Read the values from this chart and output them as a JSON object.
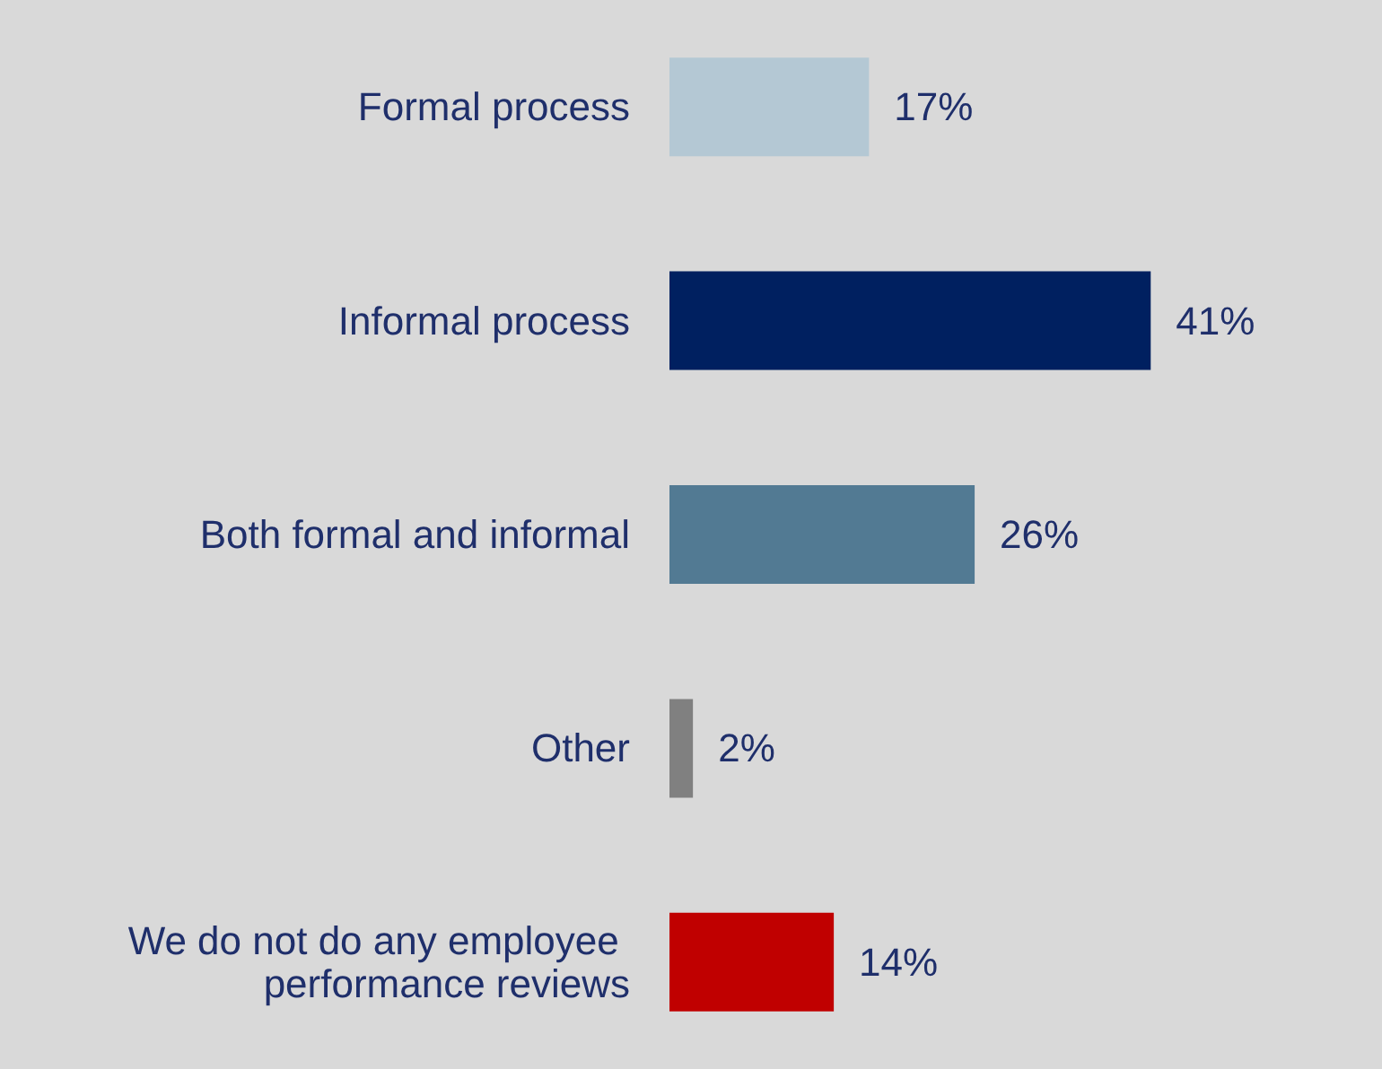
{
  "chart_data": {
    "type": "bar",
    "orientation": "horizontal",
    "categories": [
      "Formal process",
      "Informal process",
      "Both formal and informal",
      "Other",
      "We do not do any employee performance reviews"
    ],
    "values": [
      17,
      41,
      26,
      2,
      14
    ],
    "colors": [
      "#b4c8d4",
      "#002060",
      "#527a93",
      "#808080",
      "#c00000"
    ],
    "value_labels": [
      "17%",
      "41%",
      "26%",
      "2%",
      "14%"
    ]
  }
}
